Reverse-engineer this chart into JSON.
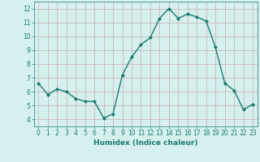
{
  "x": [
    0,
    1,
    2,
    3,
    4,
    5,
    6,
    7,
    8,
    9,
    10,
    11,
    12,
    13,
    14,
    15,
    16,
    17,
    18,
    19,
    20,
    21,
    22,
    23
  ],
  "y": [
    6.6,
    5.8,
    6.2,
    6.0,
    5.5,
    5.3,
    5.3,
    4.1,
    4.4,
    7.2,
    8.5,
    9.4,
    9.9,
    11.3,
    12.0,
    11.3,
    11.6,
    11.4,
    11.1,
    9.2,
    6.6,
    6.1,
    4.7,
    5.1
  ],
  "xlabel": "Humidex (Indice chaleur)",
  "ylim": [
    3.5,
    12.5
  ],
  "xlim": [
    -0.5,
    23.5
  ],
  "yticks": [
    4,
    5,
    6,
    7,
    8,
    9,
    10,
    11,
    12
  ],
  "xtick_labels": [
    "0",
    "1",
    "2",
    "3",
    "4",
    "5",
    "6",
    "7",
    "8",
    "9",
    "10",
    "11",
    "12",
    "13",
    "14",
    "15",
    "16",
    "17",
    "18",
    "19",
    "20",
    "21",
    "22",
    "23"
  ],
  "line_color": "#1a7a6e",
  "marker": "D",
  "marker_size": 2.0,
  "bg_color": "#d6f0f0",
  "grid_color": "#c8b8b8",
  "xlabel_fontsize": 6.5,
  "tick_fontsize": 5.5,
  "linewidth": 1.0
}
